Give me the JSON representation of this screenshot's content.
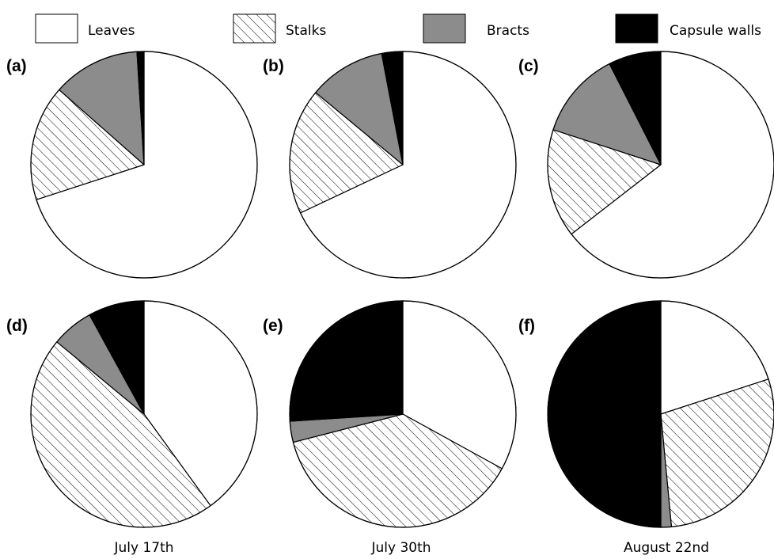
{
  "chart_data": {
    "type": "pie",
    "legend": {
      "placement": "top",
      "entries": [
        {
          "name": "Leaves",
          "fill": "#ffffff",
          "pattern": "none"
        },
        {
          "name": "Stalks",
          "fill": "#ffffff",
          "pattern": "diagonal-hatch"
        },
        {
          "name": "Bracts",
          "fill": "#8c8c8c",
          "pattern": "none"
        },
        {
          "name": "Capsule walls",
          "fill": "#000000",
          "pattern": "none"
        }
      ]
    },
    "column_labels": [
      "July 17th",
      "July 30th",
      "August 22nd"
    ],
    "panels": [
      {
        "label": "(a)",
        "row": 0,
        "col": 0,
        "values": {
          "Leaves": 70,
          "Stalks": 16.5,
          "Bracts": 12.5,
          "Capsule walls": 1
        }
      },
      {
        "label": "(b)",
        "row": 0,
        "col": 1,
        "values": {
          "Leaves": 68,
          "Stalks": 18,
          "Bracts": 11,
          "Capsule walls": 3
        }
      },
      {
        "label": "(c)",
        "row": 0,
        "col": 2,
        "values": {
          "Leaves": 64.5,
          "Stalks": 15.5,
          "Bracts": 12.5,
          "Capsule walls": 7.5
        }
      },
      {
        "label": "(d)",
        "row": 1,
        "col": 0,
        "values": {
          "Leaves": 40,
          "Stalks": 46,
          "Bracts": 6,
          "Capsule walls": 8
        }
      },
      {
        "label": "(e)",
        "row": 1,
        "col": 1,
        "values": {
          "Leaves": 33,
          "Stalks": 38,
          "Bracts": 3,
          "Capsule walls": 26
        }
      },
      {
        "label": "(f)",
        "row": 1,
        "col": 2,
        "values": {
          "Leaves": 20,
          "Stalks": 28.5,
          "Bracts": 1.5,
          "Capsule walls": 50
        }
      }
    ]
  }
}
